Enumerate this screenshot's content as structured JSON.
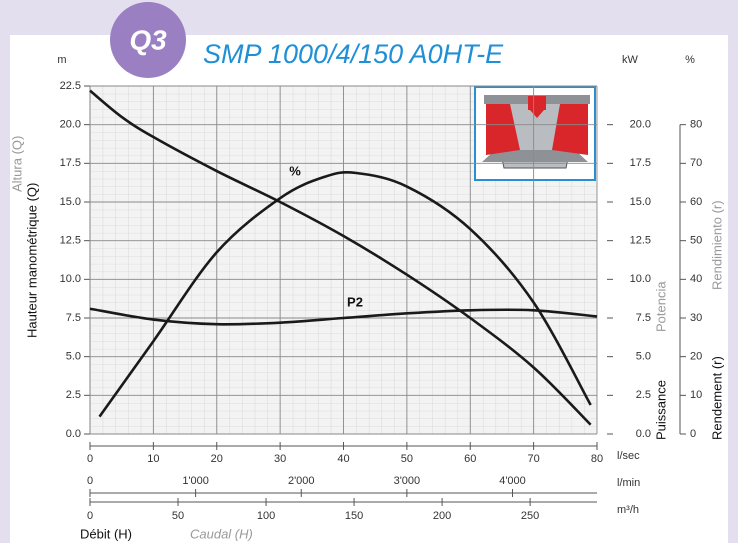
{
  "chart_data": {
    "type": "line",
    "badge": "Q3",
    "title": "SMP 1000/4/150 A0HT-E",
    "y_unit": "m",
    "y2_unit": "kW",
    "y3_unit": "%",
    "y_labels": [
      "Hauteur manométrique (Q)",
      "Altura (Q)"
    ],
    "y2_labels": [
      "Puissance",
      "Potencia"
    ],
    "y3_labels": [
      "Rendement (r)",
      "Rendimiento (r)"
    ],
    "x_labels": [
      "Débit (H)",
      "Caudal (H)"
    ],
    "x_unit": "l/sec",
    "xlim": [
      0,
      80
    ],
    "xticks": [
      0,
      10,
      20,
      30,
      40,
      50,
      60,
      70,
      80
    ],
    "x2": {
      "unit": "l/min",
      "lim": [
        0,
        4800
      ],
      "ticks": [
        0,
        {
          "value": 1000,
          "label": "1'000"
        },
        {
          "value": 2000,
          "label": "2'000"
        },
        {
          "value": 3000,
          "label": "3'000"
        },
        {
          "value": 4000,
          "label": "4'000"
        }
      ]
    },
    "x3": {
      "unit": "m³/h",
      "lim": [
        0,
        288
      ],
      "ticks": [
        0,
        50,
        100,
        150,
        200,
        250
      ]
    },
    "ylim": [
      0,
      22.5
    ],
    "yticks": [
      {
        "value": 0,
        "label": "0.0"
      },
      2.5,
      {
        "value": 5,
        "label": "5.0"
      },
      7.5,
      {
        "value": 10,
        "label": "10.0"
      },
      12.5,
      {
        "value": 15,
        "label": "15.0"
      },
      17.5,
      {
        "value": 20,
        "label": "20.0"
      },
      22.5
    ],
    "y2lim": [
      0,
      22.5
    ],
    "y2ticks": [
      {
        "value": 0,
        "label": "0.0"
      },
      2.5,
      {
        "value": 5,
        "label": "5.0"
      },
      7.5,
      {
        "value": 10,
        "label": "10.0"
      },
      12.5,
      {
        "value": 15,
        "label": "15.0"
      },
      17.5,
      {
        "value": 20,
        "label": "20.0"
      }
    ],
    "y3lim": [
      0,
      90
    ],
    "y3ticks": [
      0,
      10,
      20,
      30,
      40,
      50,
      60,
      70,
      80
    ],
    "grid": true,
    "series": [
      {
        "color": "#1a1a1a",
        "x": [
          0,
          5,
          10,
          20,
          30,
          40,
          50,
          60,
          70,
          79
        ],
        "values": [
          22.2,
          20.5,
          19.2,
          17.0,
          15.0,
          12.8,
          10.3,
          7.5,
          4.3,
          0.6
        ]
      },
      {
        "name": "%",
        "axis": "y3",
        "color": "#1a1a1a",
        "x": [
          1.5,
          10,
          20,
          30,
          37,
          42,
          50,
          60,
          70,
          79
        ],
        "values": [
          4.5,
          24,
          47,
          61,
          66.5,
          67.5,
          64,
          53,
          34,
          7.5
        ]
      },
      {
        "name": "P2",
        "axis": "y2",
        "color": "#1a1a1a",
        "x": [
          0,
          10,
          20,
          30,
          40,
          50,
          60,
          70,
          80
        ],
        "values": [
          8.1,
          7.4,
          7.1,
          7.2,
          7.5,
          7.8,
          8.0,
          8.0,
          7.6
        ]
      }
    ]
  }
}
